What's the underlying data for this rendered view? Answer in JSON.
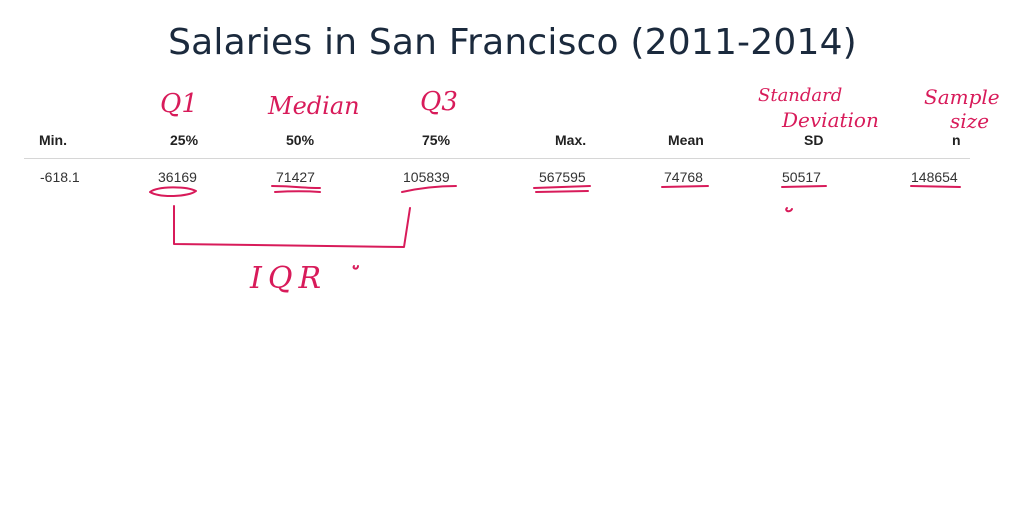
{
  "title": "Salaries in San Francisco (2011-2014)",
  "table": {
    "headers": [
      "Min.",
      "25%",
      "50%",
      "75%",
      "Max.",
      "Mean",
      "SD",
      "n"
    ],
    "values": [
      "-618.1",
      "36169",
      "71427",
      "105839",
      "567595",
      "74768",
      "50517",
      "148654"
    ]
  },
  "annotations": {
    "q1": "Q1",
    "median": "Median",
    "q3": "Q3",
    "standard": "Standard",
    "deviation": "Deviation",
    "sample": "Sample",
    "size": "size",
    "iqr": "IQR"
  },
  "colors": {
    "ink": "#d81b5a",
    "title": "#1b2a3d"
  }
}
